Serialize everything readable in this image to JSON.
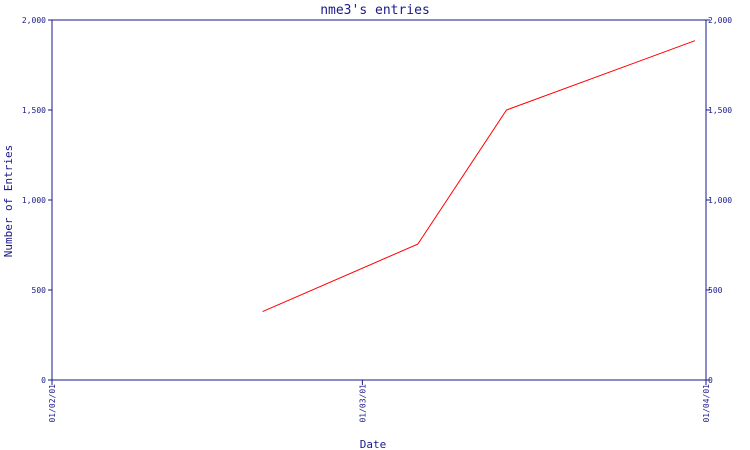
{
  "chart_data": {
    "type": "line",
    "title": "nme3's entries",
    "xlabel": "Date",
    "ylabel": "Number of Entries",
    "xlim": [
      "2001-02-01",
      "2001-04-01"
    ],
    "ylim": [
      0,
      2000
    ],
    "x_ticks": [
      "2001-02-01",
      "2001-03-01",
      "2001-04-01"
    ],
    "x_tick_labels": [
      "01/02/01",
      "01/03/01",
      "01/04/01"
    ],
    "y_ticks": [
      0,
      500,
      1000,
      1500,
      2000
    ],
    "y_tick_labels": [
      "0",
      "500",
      "1,000",
      "1,500",
      "2,000"
    ],
    "grid": false,
    "series": [
      {
        "color": "#ff0000",
        "x": [
          "2001-02-20",
          "2001-03-06",
          "2001-03-14",
          "2001-03-31"
        ],
        "y": [
          380,
          755,
          1500,
          1885
        ]
      }
    ]
  },
  "colors": {
    "axis": "#1a1a8a",
    "background": "#ffffff"
  }
}
